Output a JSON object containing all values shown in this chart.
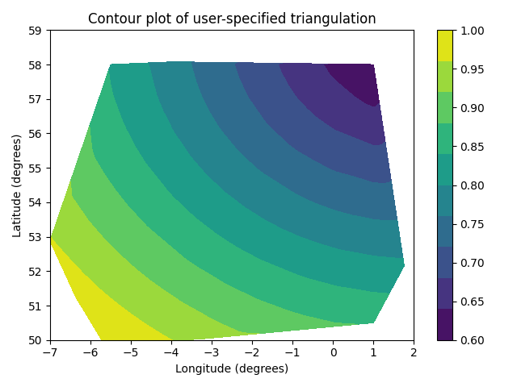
{
  "title": "Contour plot of user-specified triangulation",
  "xlabel": "Longitude (degrees)",
  "ylabel": "Latitude (degrees)",
  "cmap": "viridis",
  "levels": 11,
  "colorbar_ticks": [
    0.6,
    0.65,
    0.7,
    0.75,
    0.8,
    0.85,
    0.9,
    0.95,
    1.0
  ],
  "figsize": [
    6.4,
    4.8
  ],
  "dpi": 100
}
